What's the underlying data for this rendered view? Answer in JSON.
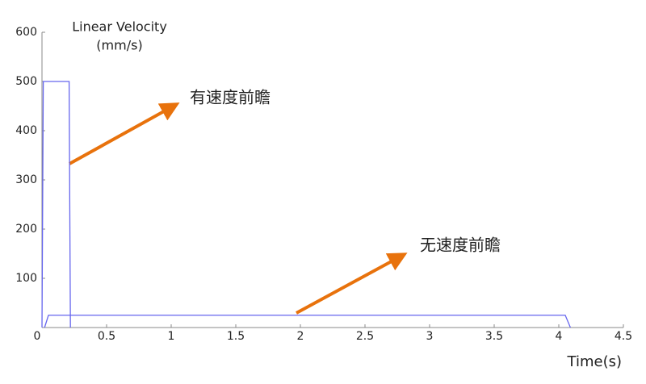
{
  "chart_data": {
    "type": "line",
    "ylabel": [
      "Linear Velocity",
      "(mm/s)"
    ],
    "xlabel": "Time(s)",
    "xlim": [
      0,
      4.5
    ],
    "xticks": [
      0,
      0.5,
      1,
      1.5,
      2,
      2.5,
      3,
      3.5,
      4,
      4.5
    ],
    "ylim": [
      0,
      600
    ],
    "yticks": [
      100,
      200,
      300,
      400,
      500,
      600
    ],
    "series": [
      {
        "color": "#6666ee",
        "x": [
          0,
          0.01,
          0.02,
          0.21,
          0.22
        ],
        "values": [
          0,
          500,
          500,
          500,
          0
        ]
      },
      {
        "color": "#6666ee",
        "x": [
          0.02,
          0.05,
          4.05,
          4.09
        ],
        "values": [
          0,
          25,
          25,
          0
        ]
      }
    ],
    "annotations": [
      "有速度前瞻",
      "无速度前瞻"
    ]
  }
}
